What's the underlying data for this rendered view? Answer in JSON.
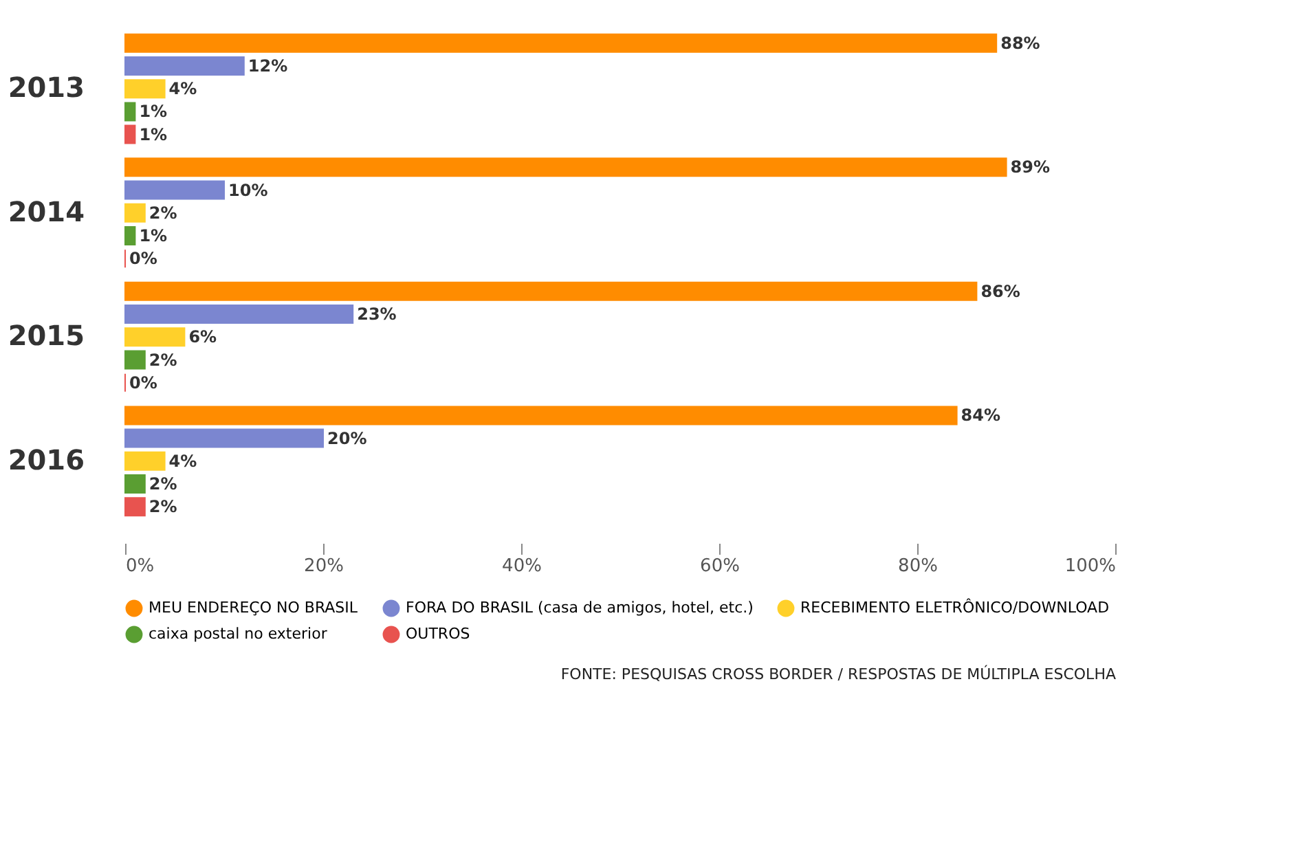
{
  "chart_data": {
    "type": "bar",
    "orientation": "horizontal",
    "categories": [
      "2013",
      "2014",
      "2015",
      "2016"
    ],
    "series": [
      {
        "name": "MEU ENDEREÇO NO BRASIL",
        "color": "#ff8c00",
        "values": [
          88,
          89,
          86,
          84
        ],
        "value_labels": [
          "88%",
          "89%",
          "86%",
          "84%"
        ]
      },
      {
        "name": "FORA DO BRASIL (casa de amigos, hotel, etc.)",
        "color": "#7b86d0",
        "values": [
          12,
          10,
          23,
          20
        ],
        "value_labels": [
          "12%",
          "10%",
          "23%",
          "20%"
        ]
      },
      {
        "name": "RECEBIMENTO ELETRÔNICO/DOWNLOAD",
        "color": "#ffd02a",
        "values": [
          4,
          2,
          6,
          4
        ],
        "value_labels": [
          "4%",
          "2%",
          "6%",
          "4%"
        ]
      },
      {
        "name": "caixa postal no exterior",
        "color": "#5a9e32",
        "values": [
          1,
          1,
          2,
          2
        ],
        "value_labels": [
          "1%",
          "1%",
          "2%",
          "2%"
        ]
      },
      {
        "name": "OUTROS",
        "color": "#e8534f",
        "values": [
          1,
          0,
          0,
          2
        ],
        "value_labels": [
          "1%",
          "0%",
          "0%",
          "2%"
        ]
      }
    ],
    "xlim": [
      0,
      100
    ],
    "xticks": [
      {
        "value": 0,
        "label": "0%"
      },
      {
        "value": 20,
        "label": "20%"
      },
      {
        "value": 40,
        "label": "40%"
      },
      {
        "value": 60,
        "label": "60%"
      },
      {
        "value": 80,
        "label": "80%"
      },
      {
        "value": 100,
        "label": "100%"
      }
    ],
    "grid": false,
    "legend": "bottom",
    "annotations": [
      "FONTE: PESQUISAS CROSS BORDER / RESPOSTAS DE MÚLTIPLA ESCOLHA"
    ]
  }
}
